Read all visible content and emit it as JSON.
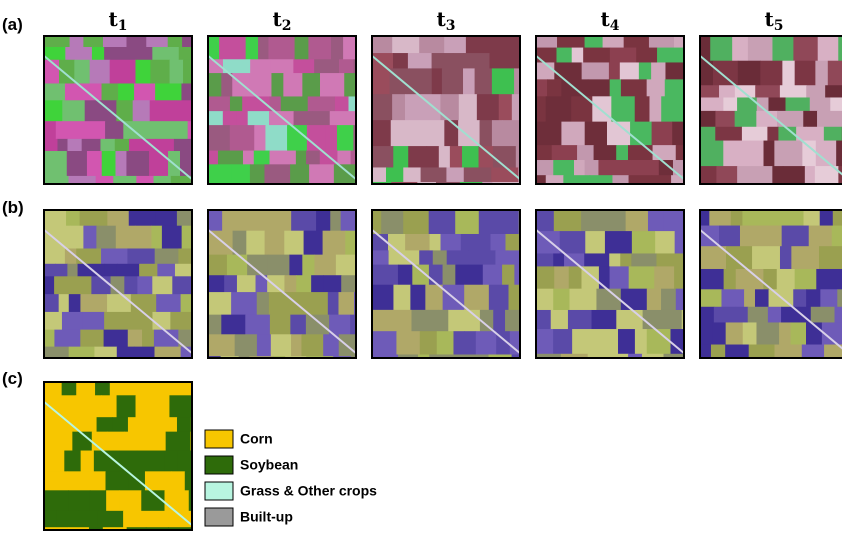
{
  "row_labels": [
    "(a)",
    "(b)",
    "(c)"
  ],
  "time_labels": [
    {
      "base": "t",
      "sub": "1"
    },
    {
      "base": "t",
      "sub": "2"
    },
    {
      "base": "t",
      "sub": "3"
    },
    {
      "base": "t",
      "sub": "4"
    },
    {
      "base": "t",
      "sub": "5"
    }
  ],
  "legend": [
    {
      "label": "Corn",
      "color": "#f7c600"
    },
    {
      "label": "Soybean",
      "color": "#2e6b0a"
    },
    {
      "label": "Grass & Other crops",
      "color": "#b8f5e0"
    },
    {
      "label": "Built-up",
      "color": "#9a9a9a"
    }
  ]
}
